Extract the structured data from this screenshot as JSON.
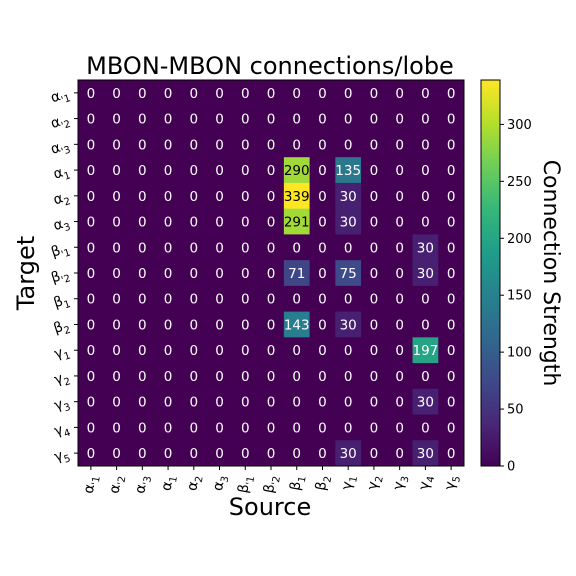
{
  "chart_data": {
    "type": "heatmap",
    "title": "MBON-MBON connections/lobe",
    "xlabel": "Source",
    "ylabel": "Target",
    "colorbar_label": "Connection Strength",
    "colorbar_ticks": [
      0,
      50,
      100,
      150,
      200,
      250,
      300
    ],
    "vmin": 0,
    "vmax": 339,
    "colormap": "viridis",
    "x_categories": [
      {
        "base": "α",
        "sub": "'1"
      },
      {
        "base": "α",
        "sub": "'2"
      },
      {
        "base": "α",
        "sub": "'3"
      },
      {
        "base": "α",
        "sub": "1"
      },
      {
        "base": "α",
        "sub": "2"
      },
      {
        "base": "α",
        "sub": "3"
      },
      {
        "base": "β",
        "sub": "'1"
      },
      {
        "base": "β",
        "sub": "'2"
      },
      {
        "base": "β",
        "sub": "1"
      },
      {
        "base": "β",
        "sub": "2"
      },
      {
        "base": "γ",
        "sub": "1"
      },
      {
        "base": "γ",
        "sub": "2"
      },
      {
        "base": "γ",
        "sub": "3"
      },
      {
        "base": "γ",
        "sub": "4"
      },
      {
        "base": "γ",
        "sub": "5"
      }
    ],
    "y_categories": [
      {
        "base": "α",
        "sub": "'1"
      },
      {
        "base": "α",
        "sub": "'2"
      },
      {
        "base": "α",
        "sub": "'3"
      },
      {
        "base": "α",
        "sub": "1"
      },
      {
        "base": "α",
        "sub": "2"
      },
      {
        "base": "α",
        "sub": "3"
      },
      {
        "base": "β",
        "sub": "'1"
      },
      {
        "base": "β",
        "sub": "'2"
      },
      {
        "base": "β",
        "sub": "1"
      },
      {
        "base": "β",
        "sub": "2"
      },
      {
        "base": "γ",
        "sub": "1"
      },
      {
        "base": "γ",
        "sub": "2"
      },
      {
        "base": "γ",
        "sub": "3"
      },
      {
        "base": "γ",
        "sub": "4"
      },
      {
        "base": "γ",
        "sub": "5"
      }
    ],
    "values": [
      [
        0,
        0,
        0,
        0,
        0,
        0,
        0,
        0,
        0,
        0,
        0,
        0,
        0,
        0,
        0
      ],
      [
        0,
        0,
        0,
        0,
        0,
        0,
        0,
        0,
        0,
        0,
        0,
        0,
        0,
        0,
        0
      ],
      [
        0,
        0,
        0,
        0,
        0,
        0,
        0,
        0,
        0,
        0,
        0,
        0,
        0,
        0,
        0
      ],
      [
        0,
        0,
        0,
        0,
        0,
        0,
        0,
        0,
        290,
        0,
        135,
        0,
        0,
        0,
        0
      ],
      [
        0,
        0,
        0,
        0,
        0,
        0,
        0,
        0,
        339,
        0,
        30,
        0,
        0,
        0,
        0
      ],
      [
        0,
        0,
        0,
        0,
        0,
        0,
        0,
        0,
        291,
        0,
        30,
        0,
        0,
        0,
        0
      ],
      [
        0,
        0,
        0,
        0,
        0,
        0,
        0,
        0,
        0,
        0,
        0,
        0,
        0,
        30,
        0
      ],
      [
        0,
        0,
        0,
        0,
        0,
        0,
        0,
        0,
        71,
        0,
        75,
        0,
        0,
        30,
        0
      ],
      [
        0,
        0,
        0,
        0,
        0,
        0,
        0,
        0,
        0,
        0,
        0,
        0,
        0,
        0,
        0
      ],
      [
        0,
        0,
        0,
        0,
        0,
        0,
        0,
        0,
        143,
        0,
        30,
        0,
        0,
        0,
        0
      ],
      [
        0,
        0,
        0,
        0,
        0,
        0,
        0,
        0,
        0,
        0,
        0,
        0,
        0,
        197,
        0
      ],
      [
        0,
        0,
        0,
        0,
        0,
        0,
        0,
        0,
        0,
        0,
        0,
        0,
        0,
        0,
        0
      ],
      [
        0,
        0,
        0,
        0,
        0,
        0,
        0,
        0,
        0,
        0,
        0,
        0,
        0,
        30,
        0
      ],
      [
        0,
        0,
        0,
        0,
        0,
        0,
        0,
        0,
        0,
        0,
        0,
        0,
        0,
        0,
        0
      ],
      [
        0,
        0,
        0,
        0,
        0,
        0,
        0,
        0,
        0,
        0,
        30,
        0,
        0,
        30,
        0
      ]
    ]
  }
}
